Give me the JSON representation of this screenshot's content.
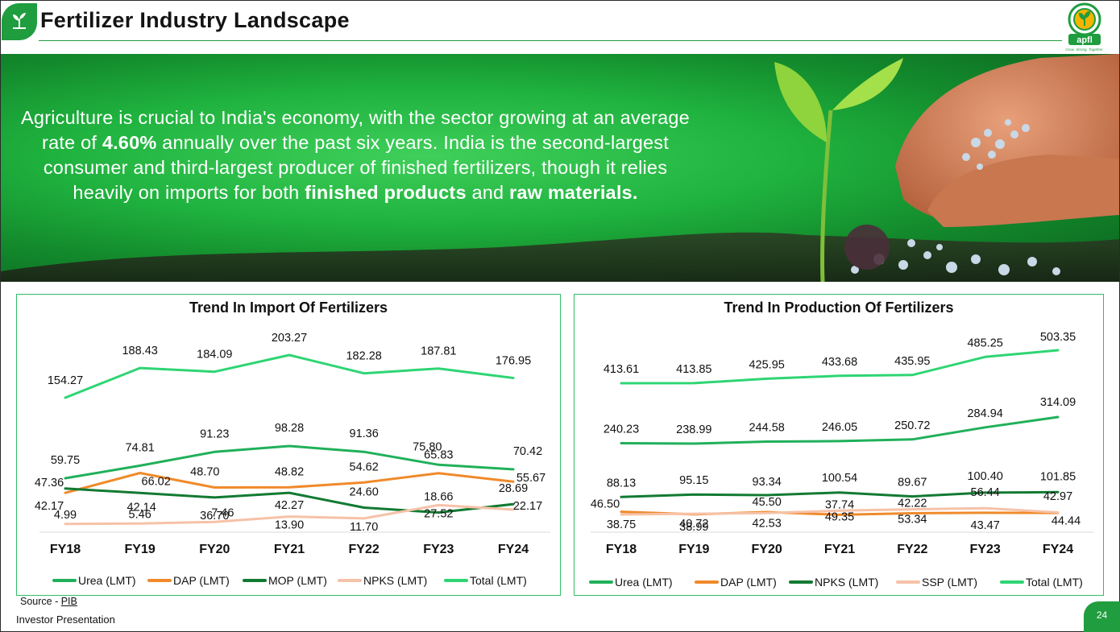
{
  "header": {
    "title": "Fertilizer Industry Landscape",
    "brand_text": "apfl",
    "brand_tagline": "Grow. Strong. Together."
  },
  "hero": {
    "part1": "Agriculture is crucial to India's economy, with the sector growing at an average rate of ",
    "bold1": "4.60%",
    "part2": " annually over the past six years. India is the second-largest consumer and third-largest producer of finished fertilizers, though it relies heavily on imports for both ",
    "bold2": "finished products",
    "part3": " and ",
    "bold3": "raw materials."
  },
  "colors": {
    "urea": "#20b05a",
    "dap": "#f08a2a",
    "mop": "#127a32",
    "npks_light": "#f6c2a8",
    "total": "#2ed573",
    "accent": "#1f9d3f"
  },
  "chart_data": [
    {
      "type": "line",
      "title": "Trend In Import Of Fertilizers",
      "categories": [
        "FY18",
        "FY19",
        "FY20",
        "FY21",
        "FY22",
        "FY23",
        "FY24"
      ],
      "unit": "LMT",
      "series": [
        {
          "key": "total",
          "name": "Total (LMT)",
          "values": [
            154.27,
            188.43,
            184.09,
            203.27,
            182.28,
            187.81,
            176.95
          ],
          "color": "#2ed573"
        },
        {
          "key": "urea",
          "name": "Urea (LMT)",
          "values": [
            59.75,
            74.81,
            91.23,
            98.28,
            91.36,
            75.8,
            70.42
          ],
          "color": "#20b05a"
        },
        {
          "key": "dap",
          "name": "DAP (LMT)",
          "values": [
            42.17,
            66.02,
            48.7,
            48.82,
            54.62,
            65.83,
            55.67
          ],
          "color": "#f08a2a"
        },
        {
          "key": "mop",
          "name": "MOP (LMT)",
          "values": [
            47.36,
            42.14,
            36.7,
            42.27,
            24.6,
            18.66,
            28.69
          ],
          "color": "#127a32"
        },
        {
          "key": "npks",
          "name": "NPKS (LMT)",
          "values": [
            4.99,
            5.46,
            7.46,
            13.9,
            11.7,
            27.52,
            22.17
          ],
          "color": "#f6c2a8"
        }
      ]
    },
    {
      "type": "line",
      "title": "Trend In Production Of Fertilizers",
      "categories": [
        "FY18",
        "FY19",
        "FY20",
        "FY21",
        "FY22",
        "FY23",
        "FY24"
      ],
      "unit": "LMT",
      "series": [
        {
          "key": "total",
          "name": "Total (LMT)",
          "values": [
            413.61,
            413.85,
            425.95,
            433.68,
            435.95,
            485.25,
            503.35
          ],
          "color": "#2ed573"
        },
        {
          "key": "urea",
          "name": "Urea (LMT)",
          "values": [
            240.23,
            238.99,
            244.58,
            246.05,
            250.72,
            284.94,
            314.09
          ],
          "color": "#20b05a"
        },
        {
          "key": "dap",
          "name": "DAP (LMT)",
          "values": [
            46.5,
            38.99,
            45.5,
            37.74,
            42.22,
            43.47,
            42.97
          ],
          "color": "#f08a2a"
        },
        {
          "key": "npks",
          "name": "NPKS (LMT)",
          "values": [
            88.13,
            95.15,
            93.34,
            100.54,
            89.67,
            100.4,
            101.85
          ],
          "color": "#127a32"
        },
        {
          "key": "ssp",
          "name": "SSP (LMT)",
          "values": [
            38.75,
            40.72,
            42.53,
            49.35,
            53.34,
            56.44,
            44.44
          ],
          "color": "#f6c2a8"
        }
      ]
    }
  ],
  "footer": {
    "source_label": "Source - ",
    "source_link": "PIB",
    "presentation": "Investor Presentation",
    "page_number": "24"
  }
}
